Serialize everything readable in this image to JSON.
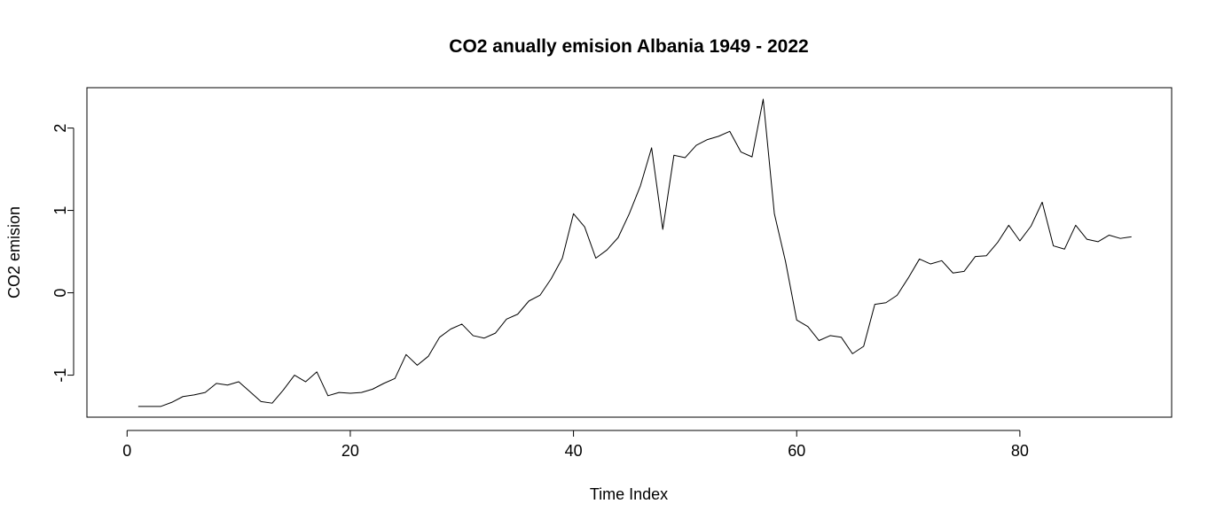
{
  "chart_data": {
    "type": "line",
    "title": "CO2 anually emision Albania 1949 - 2022",
    "xlabel": "Time Index",
    "ylabel": "CO2 emision",
    "xlim": [
      -3.6,
      93.6
    ],
    "ylim": [
      -1.51,
      2.49
    ],
    "xticks": [
      "0",
      "20",
      "40",
      "60",
      "80"
    ],
    "yticks": [
      "-1",
      "0",
      "1",
      "2"
    ],
    "grid": false,
    "legend": "none",
    "line_color": "#000000",
    "series": [
      {
        "x": [
          1,
          2,
          3,
          4,
          5,
          6,
          7,
          8,
          9,
          10,
          11,
          12,
          13,
          14,
          15,
          16,
          17,
          18,
          19,
          20,
          21,
          22,
          23,
          24,
          25,
          26,
          27,
          28,
          29,
          30,
          31,
          32,
          33,
          34,
          35,
          36,
          37,
          38,
          39,
          40,
          41,
          42,
          43,
          44,
          45,
          46,
          47,
          48,
          49,
          50,
          51,
          52,
          53,
          54,
          55,
          56,
          57,
          58,
          59,
          60,
          61,
          62,
          63,
          64,
          65,
          66,
          67,
          68,
          69,
          70,
          71,
          72,
          73,
          74,
          75,
          76,
          77,
          78,
          79,
          80,
          81,
          82,
          83,
          84,
          85,
          86,
          87,
          88,
          89,
          90
        ],
        "values": [
          -1.38,
          -1.38,
          -1.38,
          -1.33,
          -1.26,
          -1.24,
          -1.21,
          -1.1,
          -1.12,
          -1.08,
          -1.2,
          -1.32,
          -1.34,
          -1.18,
          -1.0,
          -1.08,
          -0.96,
          -1.25,
          -1.21,
          -1.22,
          -1.21,
          -1.17,
          -1.1,
          -1.04,
          -0.75,
          -0.88,
          -0.77,
          -0.54,
          -0.44,
          -0.38,
          -0.52,
          -0.55,
          -0.49,
          -0.32,
          -0.26,
          -0.1,
          -0.03,
          0.17,
          0.42,
          0.96,
          0.8,
          0.42,
          0.52,
          0.67,
          0.96,
          1.3,
          1.76,
          0.77,
          1.67,
          1.64,
          1.79,
          1.86,
          1.9,
          1.96,
          1.71,
          1.65,
          2.35,
          0.96,
          0.38,
          -0.33,
          -0.41,
          -0.58,
          -0.52,
          -0.54,
          -0.74,
          -0.65,
          -0.14,
          -0.12,
          -0.03,
          0.18,
          0.41,
          0.35,
          0.39,
          0.24,
          0.26,
          0.44,
          0.45,
          0.61,
          0.82,
          0.63,
          0.81,
          1.1,
          0.57,
          0.53,
          0.82,
          0.65,
          0.62,
          0.7,
          0.66,
          0.68
        ]
      }
    ]
  }
}
